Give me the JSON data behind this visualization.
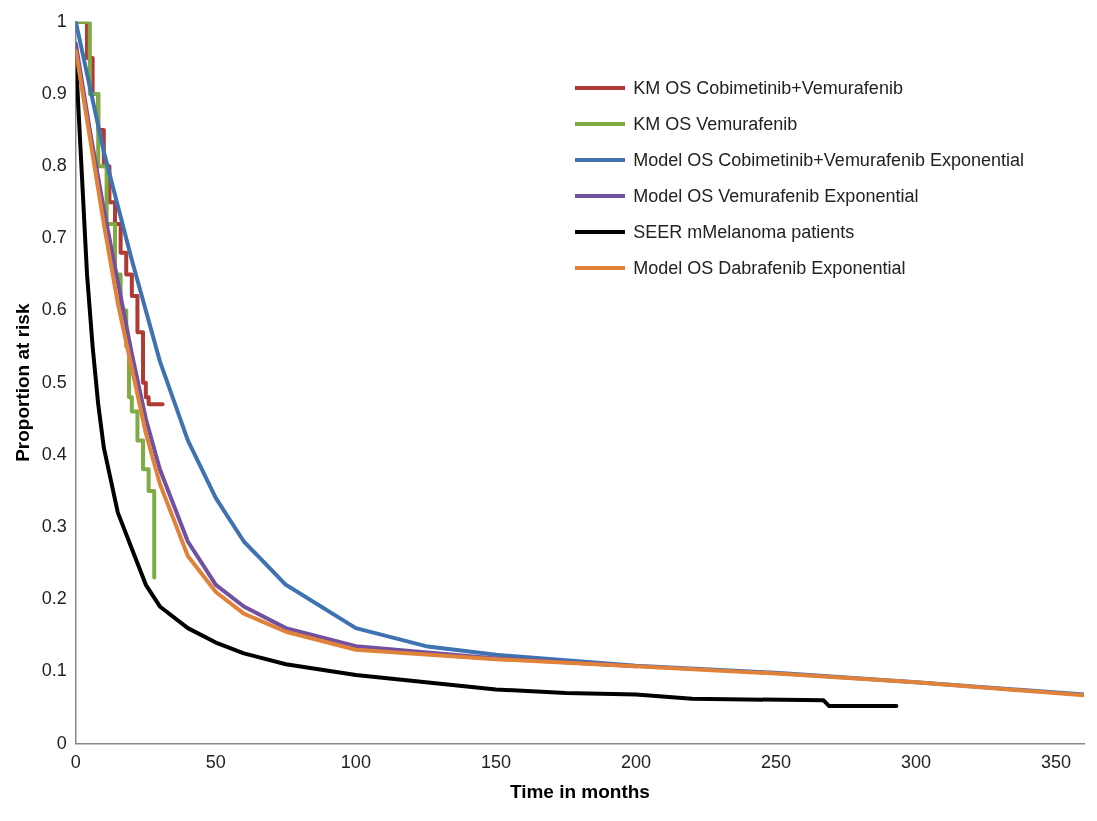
{
  "chart_data": {
    "type": "line",
    "xlabel": "Time in months",
    "ylabel": "Proportion at risk",
    "xlim": [
      0,
      360
    ],
    "xticks": [
      0,
      50,
      100,
      150,
      200,
      250,
      300,
      350
    ],
    "ylim": [
      0,
      1
    ],
    "yticks": [
      0,
      0.1,
      0.2,
      0.3,
      0.4,
      0.5,
      0.6,
      0.7,
      0.8,
      0.9,
      1
    ],
    "grid": false,
    "legend": "top right",
    "marker": "none",
    "line_style": "solid",
    "series": [
      {
        "name": "KM OS Cobimetinib+Vemurafenib",
        "color": "#b03a35",
        "type": "step",
        "x": [
          0,
          2,
          4,
          6,
          8,
          10,
          12,
          14,
          16,
          18,
          20,
          22,
          24,
          25,
          26,
          31
        ],
        "values": [
          1,
          1,
          0.95,
          0.9,
          0.85,
          0.8,
          0.75,
          0.72,
          0.68,
          0.65,
          0.62,
          0.57,
          0.5,
          0.48,
          0.47,
          0.47
        ]
      },
      {
        "name": "KM OS Vemurafenib",
        "color": "#7fab45",
        "type": "step",
        "x": [
          0,
          2,
          5,
          8,
          11,
          14,
          16,
          18,
          19,
          20,
          22,
          24,
          26,
          28,
          28
        ],
        "values": [
          1,
          1,
          0.9,
          0.8,
          0.72,
          0.65,
          0.6,
          0.55,
          0.48,
          0.46,
          0.42,
          0.38,
          0.35,
          0.35,
          0.23
        ]
      },
      {
        "name": "Model OS Cobimetinib+Vemurafenib Exponential",
        "color": "#3f72b0",
        "x": [
          0,
          10,
          20,
          30,
          40,
          50,
          60,
          75,
          100,
          125,
          150,
          200,
          250,
          300,
          360
        ],
        "values": [
          1,
          0.82,
          0.67,
          0.53,
          0.42,
          0.34,
          0.28,
          0.22,
          0.16,
          0.135,
          0.123,
          0.108,
          0.098,
          0.085,
          0.068
        ]
      },
      {
        "name": "Model OS Vemurafenib Exponential",
        "color": "#7150a0",
        "x": [
          0,
          5,
          10,
          15,
          20,
          25,
          30,
          40,
          50,
          60,
          75,
          100,
          150,
          200
        ],
        "values": [
          0.97,
          0.85,
          0.74,
          0.64,
          0.54,
          0.45,
          0.38,
          0.28,
          0.22,
          0.19,
          0.16,
          0.135,
          0.118,
          0.107
        ]
      },
      {
        "name": "SEER mMelanoma patients",
        "color": "#000000",
        "x": [
          0,
          2,
          4,
          6,
          8,
          10,
          15,
          20,
          25,
          30,
          40,
          50,
          60,
          75,
          100,
          125,
          150,
          175,
          200,
          220,
          267,
          269,
          293
        ],
        "values": [
          0.95,
          0.8,
          0.65,
          0.55,
          0.47,
          0.41,
          0.32,
          0.27,
          0.22,
          0.19,
          0.16,
          0.14,
          0.125,
          0.11,
          0.095,
          0.085,
          0.075,
          0.07,
          0.068,
          0.062,
          0.06,
          0.052,
          0.052
        ]
      },
      {
        "name": "Model OS Dabrafenib Exponential",
        "color": "#e0823a",
        "x": [
          0,
          5,
          10,
          15,
          20,
          25,
          30,
          40,
          50,
          60,
          75,
          100,
          150,
          200,
          250,
          300,
          360
        ],
        "values": [
          0.96,
          0.84,
          0.72,
          0.61,
          0.52,
          0.43,
          0.36,
          0.26,
          0.21,
          0.18,
          0.155,
          0.13,
          0.117,
          0.107,
          0.097,
          0.085,
          0.067
        ]
      }
    ]
  }
}
